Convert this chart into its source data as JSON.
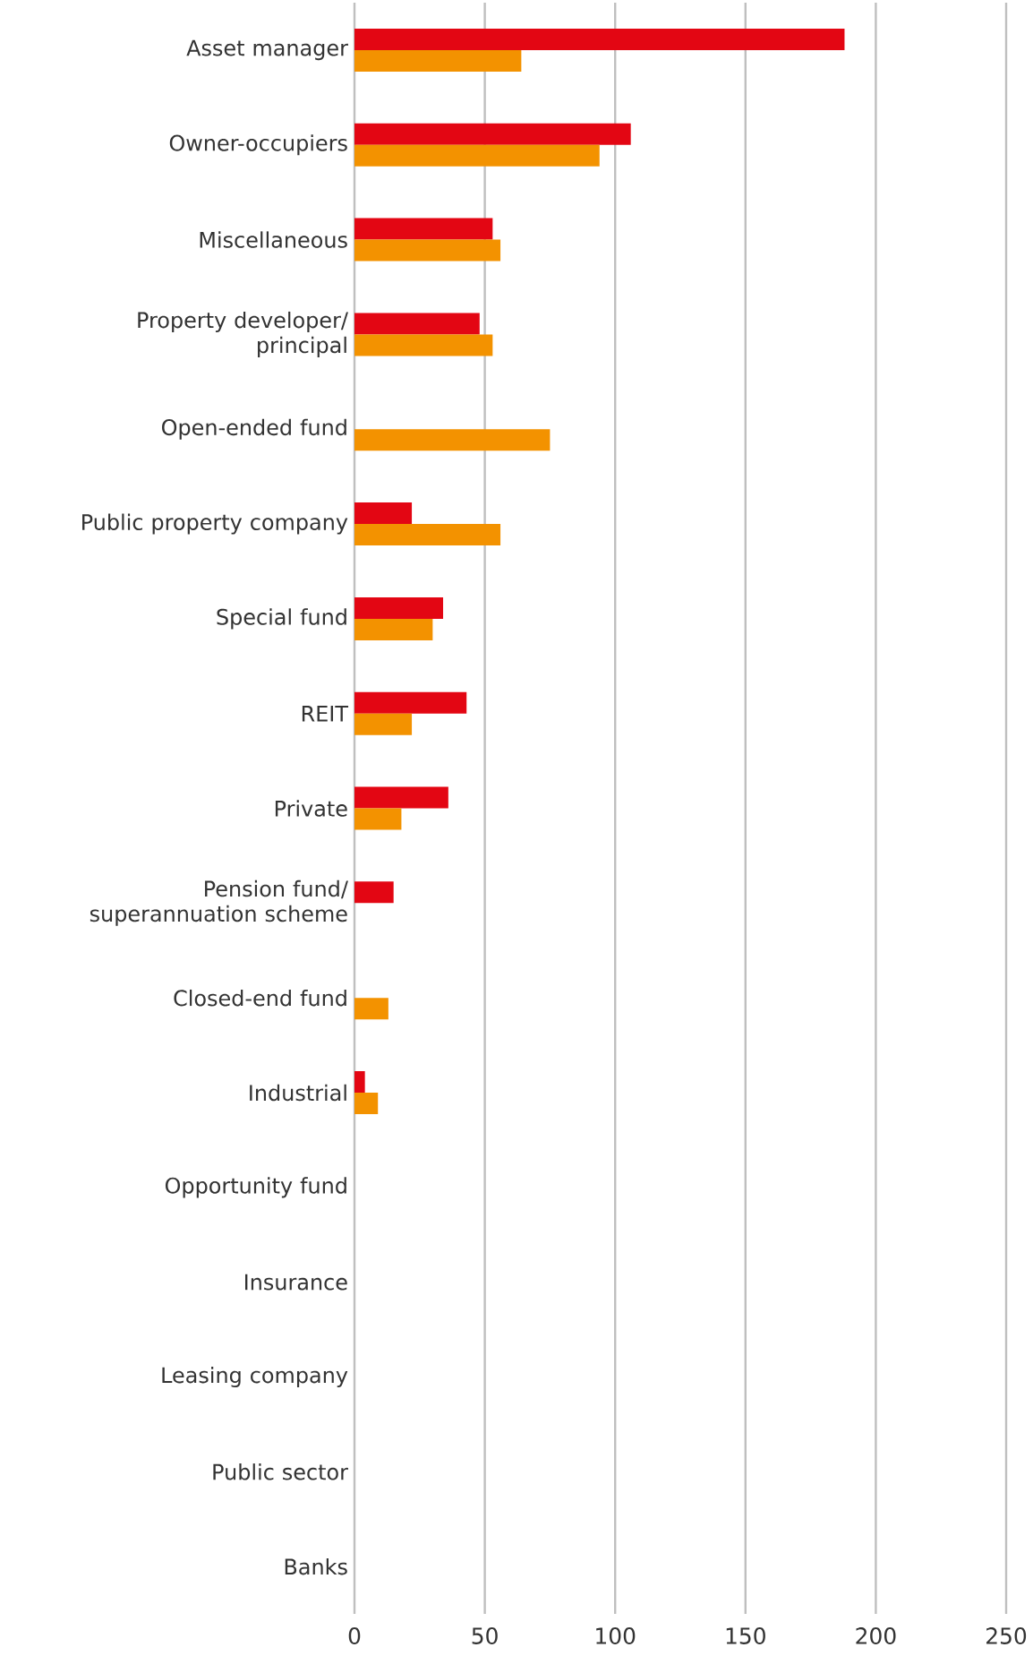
{
  "chart_data": {
    "type": "bar",
    "orientation": "horizontal",
    "categories": [
      "Asset manager",
      "Owner-occupiers",
      "Miscellaneous",
      "Property developer/ principal",
      "Open-ended fund",
      "Public property company",
      "Special fund",
      "REIT",
      "Private",
      "Pension fund/ superannuation scheme",
      "Closed-end fund",
      "Industrial",
      "Opportunity fund",
      "Insurance",
      "Leasing company",
      "Public sector",
      "Banks"
    ],
    "series": [
      {
        "color": "#e30613",
        "values": [
          188,
          106,
          53,
          48,
          null,
          22,
          34,
          43,
          36,
          15,
          null,
          4,
          null,
          null,
          null,
          null,
          null
        ]
      },
      {
        "color": "#f39200",
        "values": [
          64,
          94,
          56,
          53,
          75,
          56,
          30,
          22,
          18,
          null,
          13,
          9,
          null,
          null,
          null,
          null,
          null
        ]
      }
    ],
    "xlim": [
      0,
      250
    ],
    "xticks": [
      0,
      50,
      100,
      150,
      200,
      250
    ],
    "grid": "x"
  }
}
